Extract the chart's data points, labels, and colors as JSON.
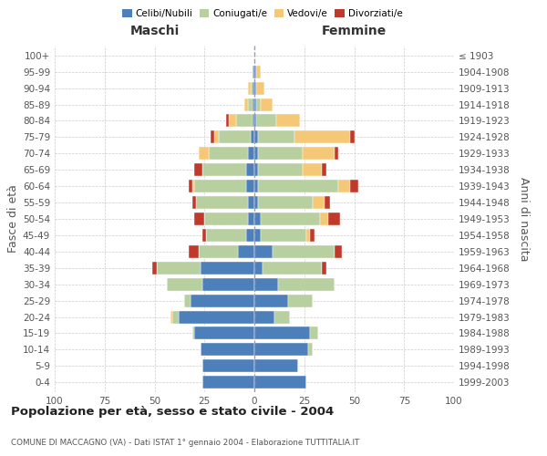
{
  "age_groups": [
    "0-4",
    "5-9",
    "10-14",
    "15-19",
    "20-24",
    "25-29",
    "30-34",
    "35-39",
    "40-44",
    "45-49",
    "50-54",
    "55-59",
    "60-64",
    "65-69",
    "70-74",
    "75-79",
    "80-84",
    "85-89",
    "90-94",
    "95-99",
    "100+"
  ],
  "birth_years": [
    "1999-2003",
    "1994-1998",
    "1989-1993",
    "1984-1988",
    "1979-1983",
    "1974-1978",
    "1969-1973",
    "1964-1968",
    "1959-1963",
    "1954-1958",
    "1949-1953",
    "1944-1948",
    "1939-1943",
    "1934-1938",
    "1929-1933",
    "1924-1928",
    "1919-1923",
    "1914-1918",
    "1909-1913",
    "1904-1908",
    "≤ 1903"
  ],
  "colors": {
    "single": "#4d7fba",
    "married": "#b8cfa0",
    "widowed": "#f5c878",
    "divorced": "#c0392b"
  },
  "males": {
    "single": [
      26,
      26,
      27,
      30,
      38,
      32,
      26,
      27,
      8,
      4,
      3,
      3,
      4,
      4,
      3,
      2,
      1,
      1,
      1,
      1,
      0
    ],
    "married": [
      0,
      0,
      0,
      1,
      3,
      3,
      18,
      22,
      20,
      20,
      22,
      26,
      26,
      22,
      20,
      16,
      8,
      2,
      1,
      0,
      0
    ],
    "widowed": [
      0,
      0,
      0,
      0,
      1,
      0,
      0,
      0,
      0,
      0,
      0,
      0,
      1,
      0,
      5,
      2,
      4,
      2,
      1,
      0,
      0
    ],
    "divorced": [
      0,
      0,
      0,
      0,
      0,
      0,
      0,
      2,
      5,
      2,
      5,
      2,
      2,
      4,
      0,
      2,
      1,
      0,
      0,
      0,
      0
    ]
  },
  "females": {
    "single": [
      26,
      22,
      27,
      28,
      10,
      17,
      12,
      4,
      9,
      3,
      3,
      2,
      2,
      2,
      2,
      2,
      1,
      1,
      1,
      1,
      0
    ],
    "married": [
      0,
      0,
      2,
      4,
      8,
      12,
      28,
      30,
      31,
      23,
      30,
      27,
      40,
      22,
      22,
      18,
      10,
      2,
      0,
      0,
      0
    ],
    "widowed": [
      0,
      0,
      0,
      0,
      0,
      0,
      0,
      0,
      0,
      2,
      4,
      6,
      6,
      10,
      16,
      28,
      12,
      6,
      4,
      2,
      0
    ],
    "divorced": [
      0,
      0,
      0,
      0,
      0,
      0,
      0,
      2,
      4,
      2,
      6,
      3,
      4,
      2,
      2,
      2,
      0,
      0,
      0,
      0,
      0
    ]
  },
  "xlim": 100,
  "title": "Popolazione per età, sesso e stato civile - 2004",
  "subtitle": "COMUNE DI MACCAGNO (VA) - Dati ISTAT 1° gennaio 2004 - Elaborazione TUTTITALIA.IT",
  "ylabel_left": "Fasce di età",
  "ylabel_right": "Anni di nascita",
  "xlabel_left": "Maschi",
  "xlabel_right": "Femmine",
  "legend_labels": [
    "Celibi/Nubili",
    "Coniugati/e",
    "Vedovi/e",
    "Divorziati/e"
  ],
  "background_color": "#ffffff",
  "grid_color": "#cccccc"
}
